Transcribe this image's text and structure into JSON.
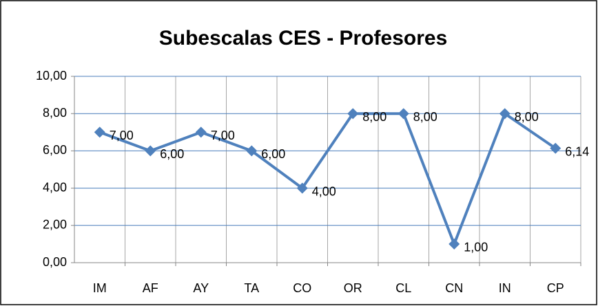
{
  "chart_data": {
    "type": "line",
    "title": "Subescalas CES - Profesores",
    "categories": [
      "IM",
      "AF",
      "AY",
      "TA",
      "CO",
      "OR",
      "CL",
      "CN",
      "IN",
      "CP"
    ],
    "series": [
      {
        "name": "Profesores",
        "color": "#4f81bd",
        "values": [
          7,
          6,
          7,
          6,
          4,
          8,
          8,
          1,
          8,
          6.14
        ],
        "value_labels": [
          "7,00",
          "6,00",
          "7,00",
          "6,00",
          "4,00",
          "8,00",
          "8,00",
          "1,00",
          "8,00",
          "6,14"
        ]
      }
    ],
    "ylim": [
      0,
      10
    ],
    "yticks": [
      {
        "value": 0,
        "label": "0,00"
      },
      {
        "value": 2,
        "label": "2,00"
      },
      {
        "value": 4,
        "label": "4,00"
      },
      {
        "value": 6,
        "label": "6,00"
      },
      {
        "value": 8,
        "label": "8,00"
      },
      {
        "value": 10,
        "label": "10,00"
      }
    ],
    "grid": true
  }
}
